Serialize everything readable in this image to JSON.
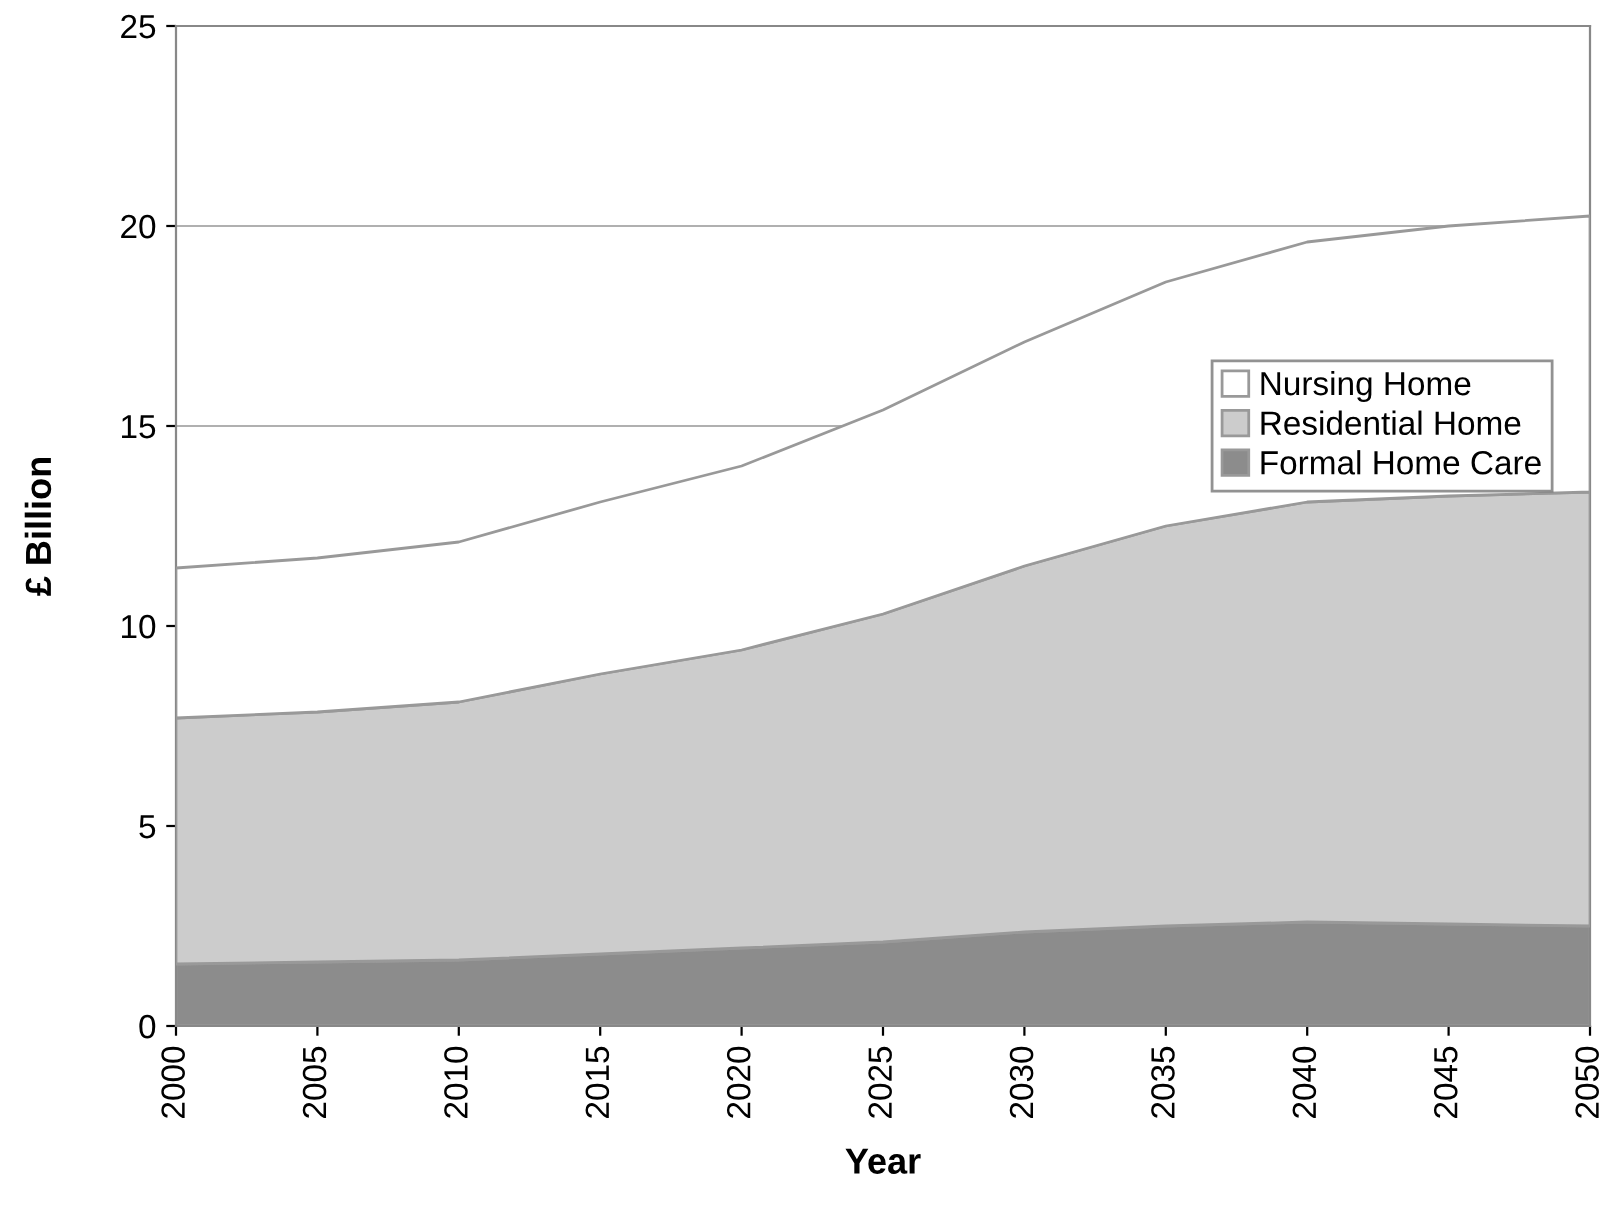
{
  "chart_data": {
    "type": "area",
    "stacked": true,
    "xlabel": "Year",
    "ylabel": "£ Billion",
    "x": [
      2000,
      2005,
      2010,
      2015,
      2020,
      2025,
      2030,
      2035,
      2040,
      2045,
      2050
    ],
    "series": [
      {
        "name": "Formal Home Care",
        "color": "#8c8c8c",
        "values": [
          1.55,
          1.6,
          1.65,
          1.8,
          1.95,
          2.1,
          2.35,
          2.5,
          2.6,
          2.55,
          2.5
        ]
      },
      {
        "name": "Residential Home",
        "color": "#cccccc",
        "values": [
          6.15,
          6.25,
          6.45,
          7.0,
          7.45,
          8.2,
          9.15,
          10.0,
          10.5,
          10.7,
          10.85
        ]
      },
      {
        "name": "Nursing Home",
        "color": "#ffffff",
        "values": [
          3.75,
          3.85,
          4.0,
          4.3,
          4.6,
          5.1,
          5.6,
          6.1,
          6.5,
          6.75,
          6.9
        ]
      }
    ],
    "xlim": [
      2000,
      2050
    ],
    "xticks": [
      2000,
      2005,
      2010,
      2015,
      2020,
      2025,
      2030,
      2035,
      2040,
      2045,
      2050
    ],
    "ylim": [
      0,
      25
    ],
    "yticks": [
      0,
      5,
      10,
      15,
      20,
      25
    ],
    "grid": "y",
    "legend": "right"
  }
}
